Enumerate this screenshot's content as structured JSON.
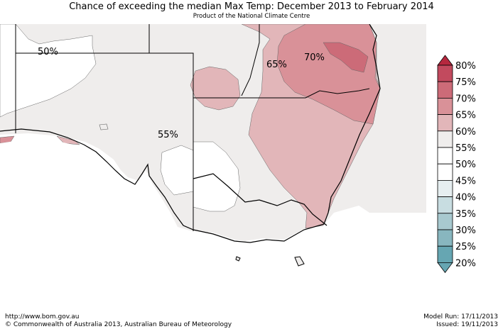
{
  "header": {
    "title": "Chance of exceeding the median Max Temp: December 2013 to February 2014",
    "subtitle": "Product of the National Climate Centre"
  },
  "map": {
    "region_labels": [
      "50%",
      "65%",
      "70%",
      "55%"
    ]
  },
  "legend": {
    "items": [
      {
        "label": "80%",
        "color": "#b5283e"
      },
      {
        "label": "75%",
        "color": "#c24a5e"
      },
      {
        "label": "70%",
        "color": "#cc6b78"
      },
      {
        "label": "65%",
        "color": "#d99198"
      },
      {
        "label": "60%",
        "color": "#e2b6b9"
      },
      {
        "label": "55%",
        "color": "#efedec"
      },
      {
        "label": "50%",
        "color": "#ffffff"
      },
      {
        "label": "45%",
        "color": "#ffffff"
      },
      {
        "label": "40%",
        "color": "#e6eef0"
      },
      {
        "label": "35%",
        "color": "#c8dde1"
      },
      {
        "label": "30%",
        "color": "#a8c9cf"
      },
      {
        "label": "25%",
        "color": "#88b6bf"
      },
      {
        "label": "20%",
        "color": "#66a6b2"
      }
    ]
  },
  "footer": {
    "url": "http://www.bom.gov.au",
    "copyright": "©  Commonwealth of Australia 2013, Australian Bureau of Meteorology",
    "model_run": "Model Run: 17/11/2013",
    "issued": "Issued: 19/11/2013"
  }
}
